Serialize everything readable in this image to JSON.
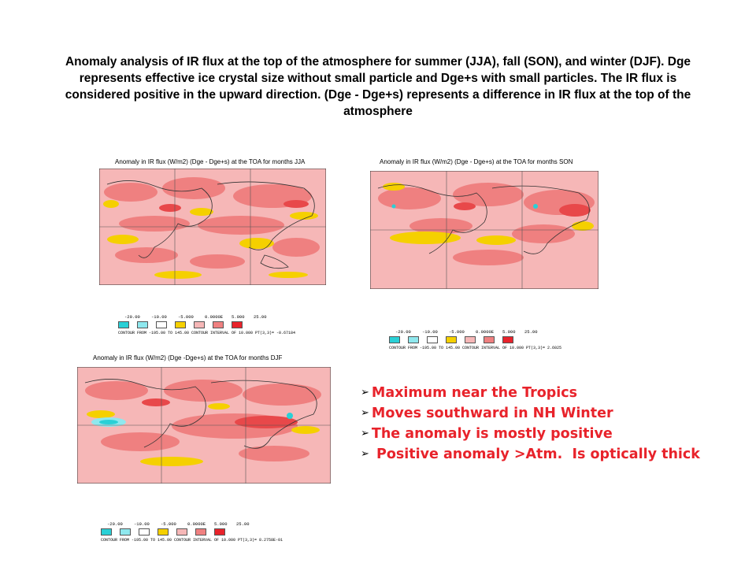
{
  "caption": "Anomaly analysis of IR flux at the top of the atmosphere for summer (JJA), fall (SON), and winter (DJF). Dge represents effective ice crystal size without small particle and Dge+s with small particles. The IR flux is considered positive in the upward direction. (Dge - Dge+s) represents  a difference in IR flux at the top of the atmosphere",
  "colors": {
    "accent": "#e8232b",
    "light_pink": "#f6b7b7",
    "pink": "#ef8080",
    "red": "#e8484a",
    "yellow": "#f5d000",
    "cyan": "#2ad0d6",
    "light_cyan": "#8fe8ee"
  },
  "maps": [
    {
      "title": "Anomaly in IR flux (W/m2) (Dge - Dge+s) at the TOA for months JJA",
      "legend": {
        "ticks": [
          "-20.00",
          "-10.00",
          "-5.000",
          "0.0000E",
          "5.000",
          "25.00"
        ],
        "info": "CONTOUR FROM  -195.00   TO   145.00   CONTOUR INTERVAL OF   10.000   PT(3,3)= -0.67184"
      }
    },
    {
      "title": "Anomaly in IR flux (W/m2) (Dge - Dge+s) at the TOA for months SON",
      "legend": {
        "ticks": [
          "-20.00",
          "-10.00",
          "-5.000",
          "0.0000E",
          "5.000",
          "25.00"
        ],
        "info": "CONTOUR FROM  -195.00   TO   145.00   CONTOUR INTERVAL OF   10.000   PT(3,3)=  2.6025"
      }
    },
    {
      "title": "Anomaly in IR flux (W/m2) (Dge -Dge+s) at the TOA  for months DJF",
      "legend": {
        "ticks": [
          "-20.00",
          "-10.00",
          "-5.000",
          "0.0000E",
          "5.000",
          "25.00"
        ],
        "info": "CONTOUR FROM  -195.00   TO   145.00   CONTOUR INTERVAL OF   10.000   PT(3,3)= 8.2758E-01"
      }
    }
  ],
  "bullets": [
    "Maximum near the Tropics",
    "Moves southward in NH Winter",
    "The anomaly is mostly positive",
    " Positive anomaly >Atm.  Is optically thick"
  ]
}
